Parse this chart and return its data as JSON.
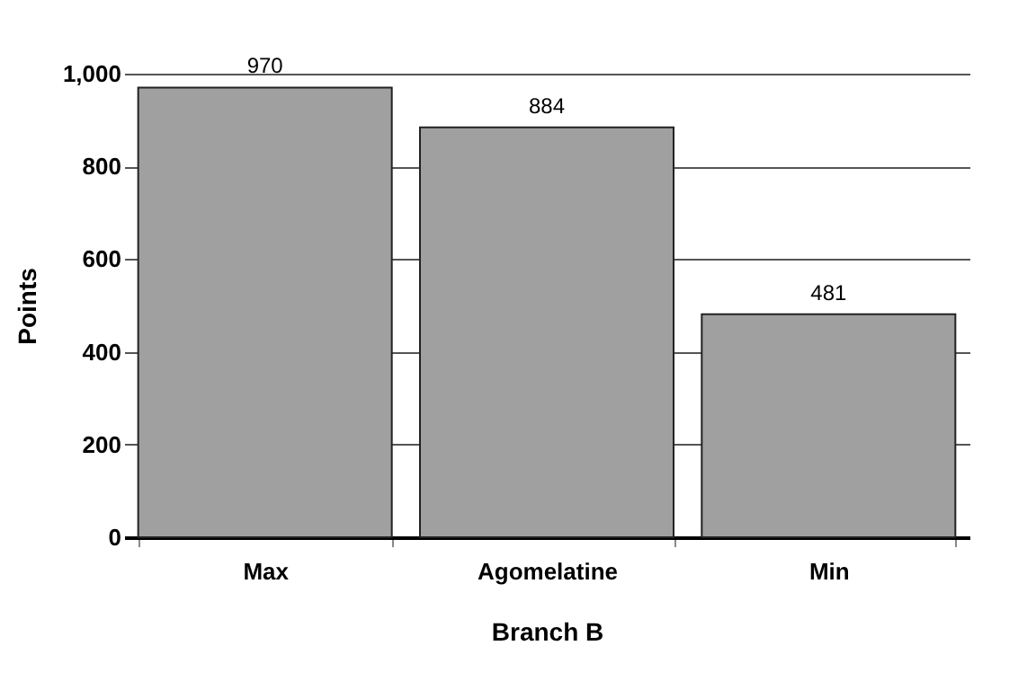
{
  "chart_data": {
    "type": "bar",
    "xlabel": "Branch B",
    "ylabel": "Points",
    "categories": [
      "Max",
      "Agomelatine",
      "Min"
    ],
    "values": [
      970,
      884,
      481
    ],
    "color": "#a0a0a0",
    "ylim": [
      0,
      1000
    ],
    "yticks": [
      0,
      200,
      400,
      600,
      800,
      {
        "value": 1000,
        "label": "1,000"
      }
    ],
    "grid": "y",
    "data_labels": true
  }
}
